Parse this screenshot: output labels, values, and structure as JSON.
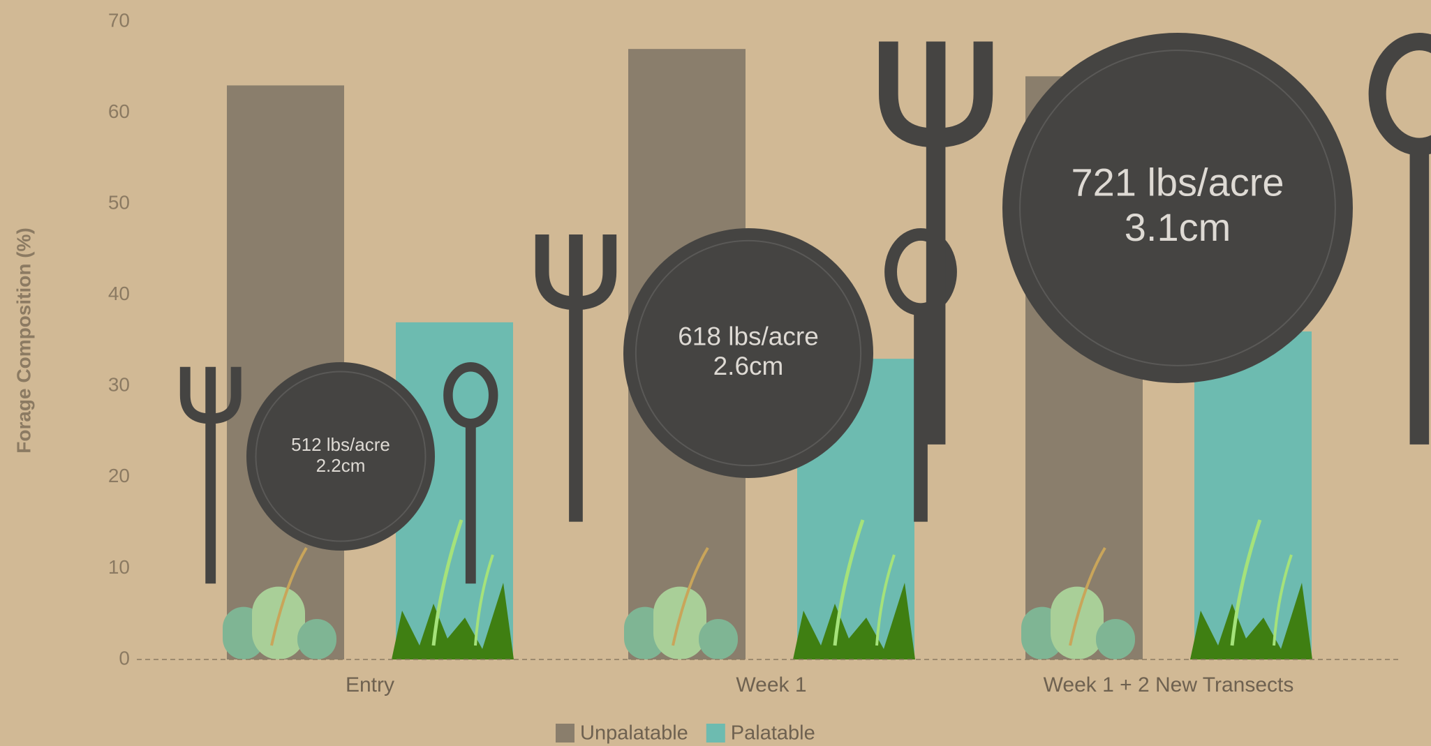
{
  "chart_data": {
    "type": "bar",
    "y_label": "Forage Composition (%)",
    "categories": [
      "Entry",
      "Week 1",
      "Week 1 + 2 New Transects"
    ],
    "series": [
      {
        "name": "Unpalatable",
        "color": "#8a7e6c",
        "values": [
          63,
          67,
          64
        ]
      },
      {
        "name": "Palatable",
        "color": "#6dbbb0",
        "values": [
          37,
          33,
          36
        ]
      }
    ],
    "ylim": [
      0,
      70
    ],
    "yticks": [
      0,
      10,
      20,
      30,
      40,
      50,
      60,
      70
    ],
    "annotations": [
      {
        "lines": [
          "512 lbs/acre",
          "2.2cm"
        ]
      },
      {
        "lines": [
          "618 lbs/acre",
          "2.6cm"
        ]
      },
      {
        "lines": [
          "721 lbs/acre",
          "3.1cm"
        ]
      }
    ]
  }
}
